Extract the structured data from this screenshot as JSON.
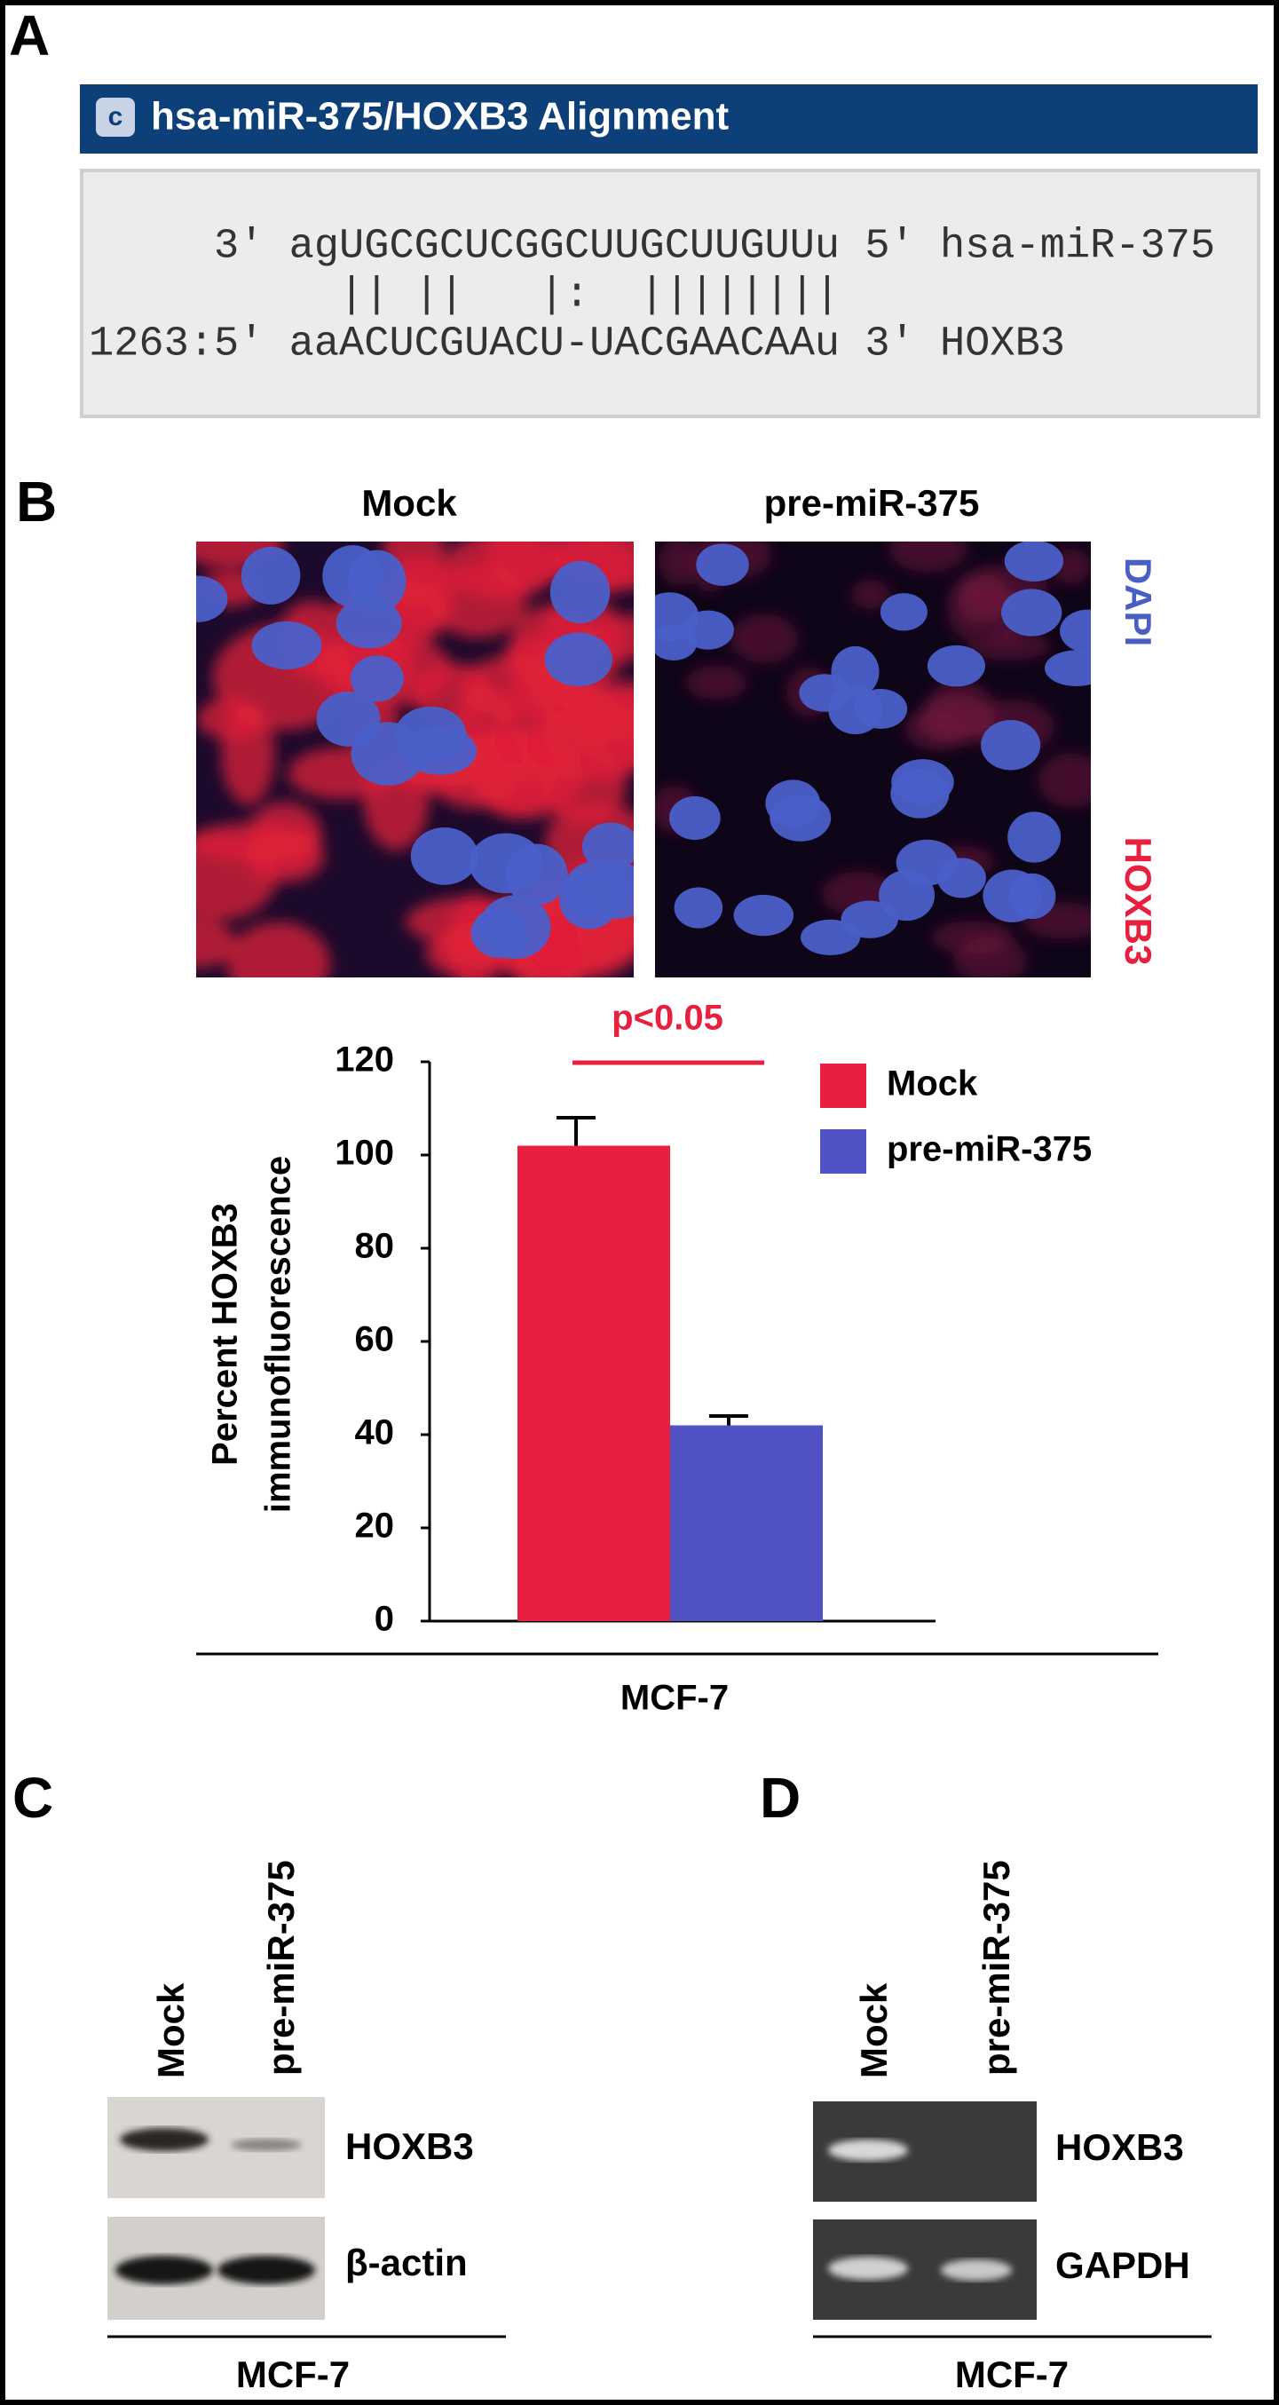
{
  "panel_a": {
    "label": "A",
    "icon_text": "c",
    "title": "hsa-miR-375/HOXB3 Alignment",
    "lines": [
      "     3' agUGCGCUCGGCUUGCUUGUUu 5' hsa-miR-375",
      "          || ||   |:  ||||||||",
      "1263:5' aaACUCGUACU-UACGAACAAu 3' HOXB3"
    ]
  },
  "panel_b": {
    "label": "B",
    "image_labels": [
      "Mock",
      "pre-miR-375"
    ],
    "stain_labels": [
      "DAPI",
      "HOXB3"
    ]
  },
  "chart_data": {
    "type": "bar",
    "ylabel": [
      "Percent HOXB3",
      "immunofluorescence"
    ],
    "annotation": "p<0.05",
    "categories": [
      "MCF-7"
    ],
    "series": [
      {
        "name": "Mock",
        "color": "#e81f3e",
        "values": [
          102
        ],
        "errors": [
          6
        ]
      },
      {
        "name": "pre-miR-375",
        "color": "#5153c4",
        "values": [
          42
        ],
        "errors": [
          2
        ]
      }
    ],
    "ylim": [
      0,
      120
    ],
    "yticks": [
      0,
      20,
      40,
      60,
      80,
      100,
      120
    ]
  },
  "panel_c": {
    "label": "C",
    "lane_labels": [
      "Mock",
      "pre-miR-375"
    ],
    "blot_labels": [
      "HOXB3",
      "β-actin"
    ],
    "cell_line": "MCF-7"
  },
  "panel_d": {
    "label": "D",
    "lane_labels": [
      "Mock",
      "pre-miR-375"
    ],
    "blot_labels": [
      "HOXB3",
      "GAPDH"
    ],
    "cell_line": "MCF-7"
  }
}
